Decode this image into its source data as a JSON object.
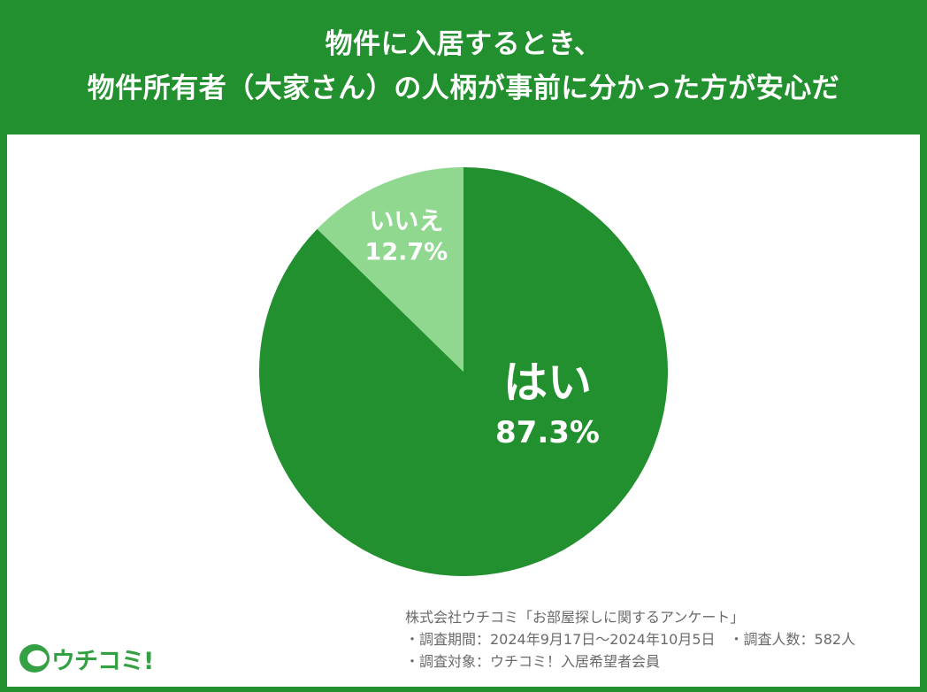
{
  "header": {
    "title_line1": "物件に入居するとき、",
    "title_line2": "物件所有者（大家さん）の人柄が事前に分かった方が安心だ"
  },
  "chart_data": {
    "type": "pie",
    "categories": [
      "はい",
      "いいえ"
    ],
    "values": [
      87.3,
      12.7
    ],
    "value_labels": [
      "87.3%",
      "12.7%"
    ],
    "colors": [
      "#239030",
      "#90d890"
    ],
    "start_angle": "12 o'clock",
    "direction": "clockwise"
  },
  "footer": {
    "lines": [
      "株式会社ウチコミ「お部屋探しに関するアンケート」",
      "・調査期間：2024年9月17日〜2024年10月5日　・調査人数：582人",
      "・調査対象：ウチコミ！入居希望者会員"
    ]
  },
  "logo": {
    "text": "ウチコミ!"
  }
}
